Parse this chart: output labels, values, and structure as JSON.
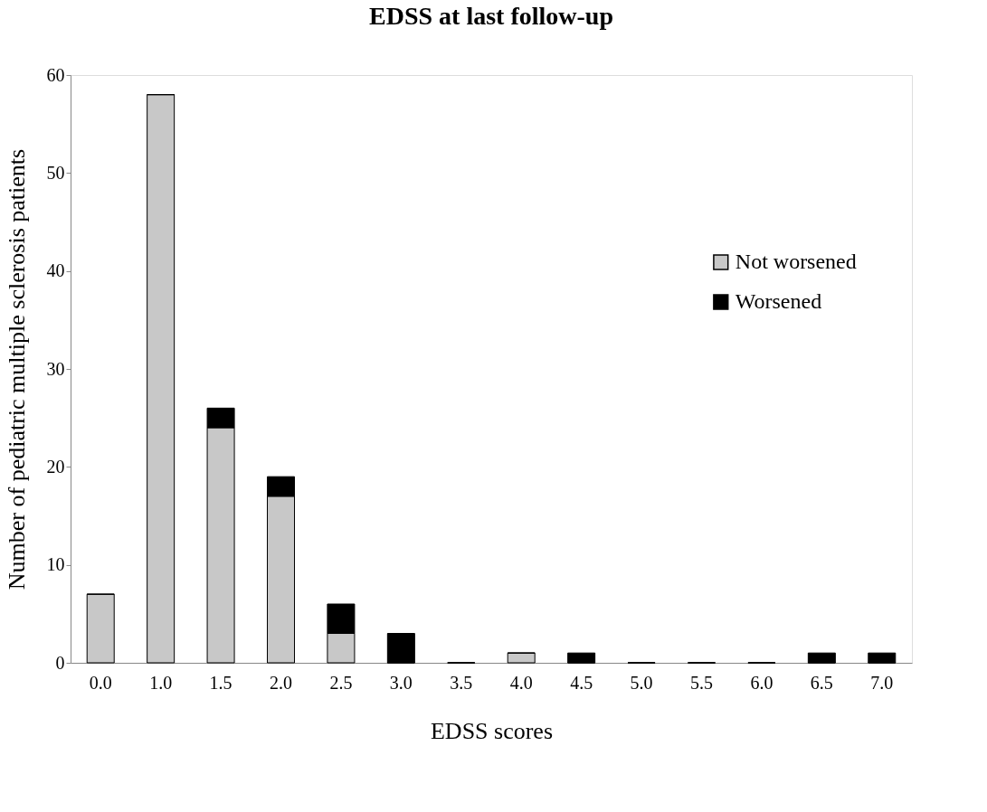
{
  "chart_data": {
    "type": "bar",
    "title": "EDSS at last follow-up",
    "xlabel": "EDSS scores",
    "ylabel": "Number of pediatric multiple sclerosis patients",
    "categories": [
      "0.0",
      "1.0",
      "1.5",
      "2.0",
      "2.5",
      "3.0",
      "3.5",
      "4.0",
      "4.5",
      "5.0",
      "5.5",
      "6.0",
      "6.5",
      "7.0"
    ],
    "series": [
      {
        "name": "Not worsened",
        "color": "#c8c8c8",
        "values": [
          7,
          58,
          24,
          17,
          3,
          0,
          0,
          1,
          0,
          0,
          0,
          0,
          0,
          0
        ]
      },
      {
        "name": "Worsened",
        "color": "#000000",
        "values": [
          0,
          0,
          2,
          2,
          3,
          3,
          0,
          0,
          1,
          0,
          0,
          0,
          1,
          1
        ]
      }
    ],
    "stacked": true,
    "ylim": [
      0,
      60
    ],
    "yticks": [
      0,
      10,
      20,
      30,
      40,
      50,
      60
    ],
    "grid": false,
    "legend": "right"
  }
}
